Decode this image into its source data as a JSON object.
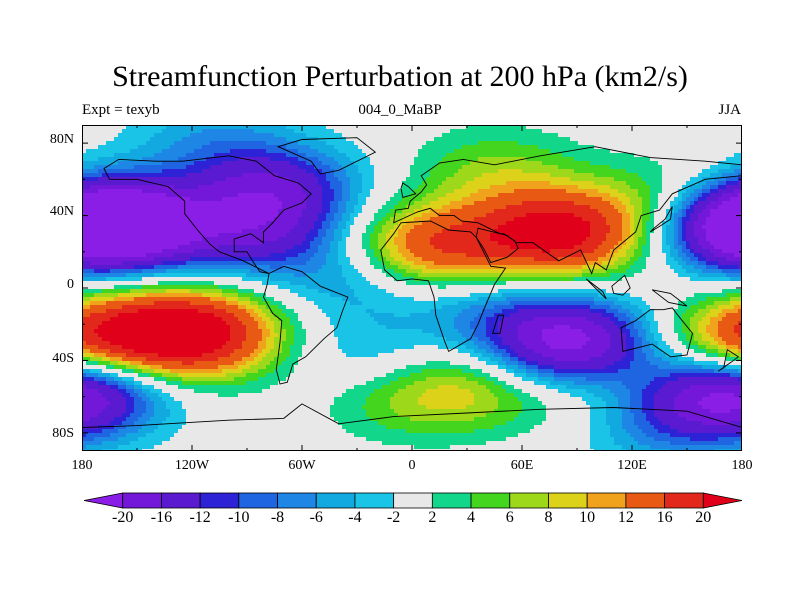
{
  "title": "Streamfunction Perturbation at 200 hPa (km2/s)",
  "subtitle_left": "Expt = texyb",
  "subtitle_center": "004_0_MaBP",
  "subtitle_right": "JJA",
  "y_ticks": [
    "80N",
    "40N",
    "0",
    "40S",
    "80S"
  ],
  "x_ticks": [
    "180",
    "120W",
    "60W",
    "0",
    "60E",
    "120E",
    "180"
  ],
  "colorbar": {
    "labels": [
      "-20",
      "-16",
      "-12",
      "-10",
      "-8",
      "-6",
      "-4",
      "-2",
      "2",
      "4",
      "6",
      "8",
      "10",
      "12",
      "16",
      "20"
    ],
    "colors": [
      "#8a1de6",
      "#7318d8",
      "#5a1ad0",
      "#2d22d6",
      "#1f64e0",
      "#1e86e4",
      "#12a8e0",
      "#1ac4e6",
      "#e8e8e8",
      "#12d68a",
      "#44d61e",
      "#9ed81a",
      "#dcd21a",
      "#f0a21c",
      "#e85a14",
      "#e2281a",
      "#e0001a"
    ]
  },
  "chart_data": {
    "type": "heatmap",
    "title": "Streamfunction Perturbation at 200 hPa (km2/s)",
    "xlim": [
      -180,
      180
    ],
    "ylim": [
      -90,
      90
    ],
    "x_ticks": [
      -180,
      -120,
      -60,
      0,
      60,
      120,
      180
    ],
    "y_ticks": [
      80,
      40,
      0,
      -40,
      -80
    ],
    "levels": [
      -20,
      -16,
      -12,
      -10,
      -8,
      -6,
      -4,
      -2,
      2,
      4,
      6,
      8,
      10,
      12,
      16,
      20
    ],
    "features": [
      {
        "lon": -155,
        "lat": 35,
        "value": -21
      },
      {
        "lon": -85,
        "lat": 30,
        "value": -12
      },
      {
        "lon": -75,
        "lat": 55,
        "value": -14
      },
      {
        "lon": -30,
        "lat": 5,
        "value": -6
      },
      {
        "lon": -110,
        "lat": 82,
        "value": -5
      },
      {
        "lon": 180,
        "lat": 35,
        "value": -21
      },
      {
        "lon": 168,
        "lat": -60,
        "value": -14
      },
      {
        "lon": -175,
        "lat": -55,
        "value": -10
      },
      {
        "lon": 85,
        "lat": -30,
        "value": -22
      },
      {
        "lon": 40,
        "lat": -10,
        "value": -5
      },
      {
        "lon": 130,
        "lat": -75,
        "value": -6
      },
      {
        "lon": -20,
        "lat": -40,
        "value": -5
      },
      {
        "lon": 80,
        "lat": 30,
        "value": 22
      },
      {
        "lon": 10,
        "lat": 22,
        "value": 16
      },
      {
        "lon": 45,
        "lat": 65,
        "value": 6
      },
      {
        "lon": 140,
        "lat": 48,
        "value": 6
      },
      {
        "lon": -115,
        "lat": -25,
        "value": 19
      },
      {
        "lon": -145,
        "lat": -25,
        "value": 10
      },
      {
        "lon": 180,
        "lat": -30,
        "value": 14
      },
      {
        "lon": 30,
        "lat": -55,
        "value": 8
      },
      {
        "lon": -10,
        "lat": -60,
        "value": 5
      },
      {
        "lon": 100,
        "lat": -60,
        "value": 4
      }
    ],
    "landmasses": [
      {
        "name": "North America",
        "coords": [
          [
            -168,
            66
          ],
          [
            -160,
            71
          ],
          [
            -140,
            70
          ],
          [
            -125,
            70
          ],
          [
            -100,
            73
          ],
          [
            -85,
            70
          ],
          [
            -75,
            62
          ],
          [
            -62,
            58
          ],
          [
            -55,
            52
          ],
          [
            -60,
            47
          ],
          [
            -70,
            43
          ],
          [
            -76,
            36
          ],
          [
            -81,
            31
          ],
          [
            -81,
            25
          ],
          [
            -88,
            30
          ],
          [
            -97,
            27
          ],
          [
            -97,
            20
          ],
          [
            -90,
            20
          ],
          [
            -87,
            15
          ],
          [
            -83,
            9
          ],
          [
            -78,
            8
          ],
          [
            -86,
            12
          ],
          [
            -92,
            15
          ],
          [
            -105,
            20
          ],
          [
            -110,
            24
          ],
          [
            -117,
            32
          ],
          [
            -124,
            41
          ],
          [
            -124,
            48
          ],
          [
            -133,
            56
          ],
          [
            -150,
            60
          ],
          [
            -165,
            60
          ]
        ]
      },
      {
        "name": "South America",
        "coords": [
          [
            -78,
            8
          ],
          [
            -70,
            12
          ],
          [
            -60,
            9
          ],
          [
            -50,
            1
          ],
          [
            -35,
            -5
          ],
          [
            -38,
            -13
          ],
          [
            -41,
            -22
          ],
          [
            -48,
            -28
          ],
          [
            -58,
            -38
          ],
          [
            -65,
            -42
          ],
          [
            -68,
            -52
          ],
          [
            -72,
            -53
          ],
          [
            -74,
            -45
          ],
          [
            -72,
            -30
          ],
          [
            -71,
            -18
          ],
          [
            -76,
            -14
          ],
          [
            -81,
            -5
          ],
          [
            -79,
            2
          ]
        ]
      },
      {
        "name": "Eurasia",
        "coords": [
          [
            -10,
            36
          ],
          [
            -9,
            43
          ],
          [
            -2,
            44
          ],
          [
            -1,
            48
          ],
          [
            5,
            53
          ],
          [
            8,
            57
          ],
          [
            5,
            62
          ],
          [
            15,
            69
          ],
          [
            28,
            71
          ],
          [
            45,
            68
          ],
          [
            70,
            73
          ],
          [
            100,
            78
          ],
          [
            130,
            72
          ],
          [
            160,
            70
          ],
          [
            180,
            68
          ],
          [
            180,
            62
          ],
          [
            160,
            60
          ],
          [
            142,
            52
          ],
          [
            135,
            43
          ],
          [
            125,
            40
          ],
          [
            122,
            31
          ],
          [
            110,
            21
          ],
          [
            106,
            10
          ],
          [
            100,
            14
          ],
          [
            98,
            8
          ],
          [
            92,
            21
          ],
          [
            80,
            15
          ],
          [
            73,
            20
          ],
          [
            66,
            25
          ],
          [
            57,
            25
          ],
          [
            52,
            29
          ],
          [
            48,
            30
          ],
          [
            36,
            36
          ],
          [
            27,
            37
          ],
          [
            23,
            40
          ],
          [
            15,
            40
          ],
          [
            10,
            44
          ],
          [
            3,
            42
          ]
        ]
      },
      {
        "name": "Africa",
        "coords": [
          [
            -17,
            21
          ],
          [
            -10,
            30
          ],
          [
            -6,
            36
          ],
          [
            10,
            37
          ],
          [
            20,
            32
          ],
          [
            32,
            31
          ],
          [
            35,
            28
          ],
          [
            43,
            12
          ],
          [
            51,
            11
          ],
          [
            45,
            2
          ],
          [
            40,
            -10
          ],
          [
            36,
            -20
          ],
          [
            32,
            -28
          ],
          [
            20,
            -35
          ],
          [
            18,
            -30
          ],
          [
            13,
            -15
          ],
          [
            12,
            -5
          ],
          [
            9,
            4
          ],
          [
            0,
            5
          ],
          [
            -8,
            4
          ],
          [
            -15,
            10
          ]
        ]
      },
      {
        "name": "Arabia",
        "coords": [
          [
            35,
            28
          ],
          [
            39,
            22
          ],
          [
            43,
            14
          ],
          [
            52,
            17
          ],
          [
            58,
            22
          ],
          [
            56,
            26
          ],
          [
            50,
            30
          ],
          [
            48,
            30
          ],
          [
            36,
            33
          ]
        ]
      },
      {
        "name": "Australia",
        "coords": [
          [
            114,
            -22
          ],
          [
            122,
            -18
          ],
          [
            130,
            -12
          ],
          [
            137,
            -12
          ],
          [
            142,
            -11
          ],
          [
            145,
            -15
          ],
          [
            153,
            -25
          ],
          [
            150,
            -37
          ],
          [
            141,
            -38
          ],
          [
            131,
            -31
          ],
          [
            115,
            -35
          ]
        ]
      },
      {
        "name": "Antarctica",
        "coords": [
          [
            -180,
            -77
          ],
          [
            -150,
            -76
          ],
          [
            -100,
            -73
          ],
          [
            -70,
            -72
          ],
          [
            -60,
            -64
          ],
          [
            -40,
            -75
          ],
          [
            -10,
            -71
          ],
          [
            30,
            -69
          ],
          [
            70,
            -67
          ],
          [
            110,
            -66
          ],
          [
            150,
            -68
          ],
          [
            180,
            -77
          ],
          [
            180,
            -90
          ],
          [
            -180,
            -90
          ]
        ]
      },
      {
        "name": "Greenland",
        "coords": [
          [
            -73,
            78
          ],
          [
            -60,
            82
          ],
          [
            -30,
            83
          ],
          [
            -20,
            75
          ],
          [
            -40,
            65
          ],
          [
            -50,
            63
          ],
          [
            -55,
            70
          ]
        ]
      },
      {
        "name": "Madagascar",
        "coords": [
          [
            44,
            -25
          ],
          [
            47,
            -15
          ],
          [
            50,
            -15
          ],
          [
            48,
            -25
          ]
        ]
      },
      {
        "name": "Japan",
        "coords": [
          [
            130,
            31
          ],
          [
            135,
            34
          ],
          [
            141,
            38
          ],
          [
            142,
            45
          ],
          [
            138,
            38
          ],
          [
            132,
            33
          ]
        ]
      },
      {
        "name": "New Zealand",
        "coords": [
          [
            172,
            -34
          ],
          [
            178,
            -38
          ],
          [
            174,
            -41
          ],
          [
            167,
            -46
          ],
          [
            170,
            -44
          ]
        ]
      },
      {
        "name": "Britain",
        "coords": [
          [
            -5,
            50
          ],
          [
            2,
            52
          ],
          [
            -2,
            56
          ],
          [
            -5,
            58
          ],
          [
            -6,
            55
          ]
        ]
      },
      {
        "name": "Borneo",
        "coords": [
          [
            109,
            1
          ],
          [
            116,
            7
          ],
          [
            119,
            0
          ],
          [
            115,
            -4
          ],
          [
            110,
            -3
          ]
        ]
      },
      {
        "name": "Sumatra",
        "coords": [
          [
            95,
            5
          ],
          [
            104,
            -2
          ],
          [
            106,
            -6
          ],
          [
            100,
            0
          ]
        ]
      },
      {
        "name": "New Guinea",
        "coords": [
          [
            131,
            -1
          ],
          [
            141,
            -3
          ],
          [
            150,
            -10
          ],
          [
            140,
            -8
          ]
        ]
      }
    ]
  }
}
